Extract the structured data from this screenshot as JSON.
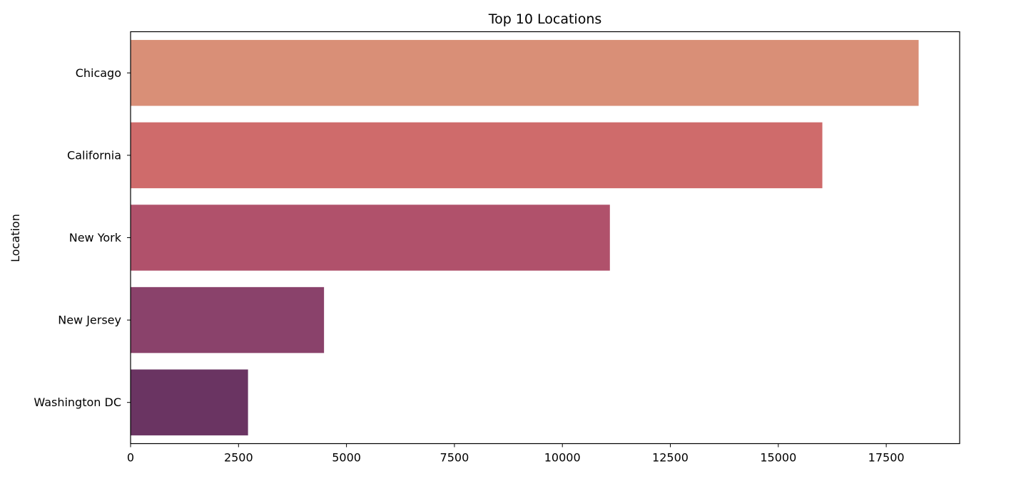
{
  "chart_data": {
    "type": "bar",
    "orientation": "horizontal",
    "title": "Top 10 Locations",
    "xlabel": "",
    "ylabel": "Location",
    "categories": [
      "Chicago",
      "California",
      "New York",
      "New Jersey",
      "Washington DC"
    ],
    "values": [
      18250,
      16020,
      11100,
      4480,
      2720
    ],
    "colors": [
      "#d98f77",
      "#cf6b6b",
      "#b0516b",
      "#8a426b",
      "#6a3462"
    ],
    "xlim": [
      0,
      19200
    ],
    "xticks": [
      0,
      2500,
      5000,
      7500,
      10000,
      12500,
      15000,
      17500
    ],
    "xtick_labels": [
      "0",
      "2500",
      "5000",
      "7500",
      "10000",
      "12500",
      "15000",
      "17500"
    ],
    "grid": false,
    "legend": "none"
  }
}
